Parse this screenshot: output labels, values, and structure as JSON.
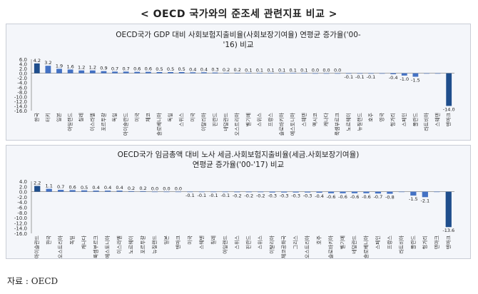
{
  "page_title": "< OECD 국가와의 준조세 관련지표 비교 >",
  "source": "자료 : OECD",
  "chart_data": [
    {
      "type": "bar",
      "title_lines": [
        "OECD국가 GDP 대비 사회보험지출비율(사회보장기여율) 연평균 증가율('00-",
        "'16) 비교"
      ],
      "ylim": [
        -16,
        6
      ],
      "yticks": [
        "6.0",
        "4.0",
        "2.0",
        "0.0",
        "-2.0",
        "-4.0",
        "-6.0",
        "-8.0",
        "-10.0",
        "-12.0",
        "-14.0",
        "-16.0"
      ],
      "highlight_color": "#1f4e8c",
      "bar_color": "#4472c4",
      "categories": [
        "한국",
        "터키",
        "일본",
        "아일랜드",
        "칠레",
        "이스라엘",
        "포르투갈",
        "독일",
        "아이슬란드",
        "미국",
        "체코",
        "슬로베니아",
        "독일",
        "스위스",
        "미국",
        "이탈리아",
        "핀란드",
        "네덜란드",
        "오스트리아",
        "벨기에",
        "스위스",
        "프랑스",
        "슬로바키아",
        "에스토니아",
        "스웨덴",
        "멕시코",
        "캐나다",
        "룩셈부르크",
        "노르웨이",
        "뉴질랜드",
        "호주",
        "영국",
        "헝가리",
        "스페인",
        "폴란드",
        "라트비아",
        "스웨덴",
        "덴마크"
      ],
      "values": [
        4.2,
        3.2,
        1.9,
        1.6,
        1.2,
        1.2,
        0.9,
        0.7,
        0.7,
        0.6,
        0.6,
        0.5,
        0.5,
        0.5,
        0.4,
        0.4,
        0.3,
        0.2,
        0.2,
        0.1,
        0.1,
        0.1,
        0.1,
        0.1,
        0.1,
        0.0,
        0.0,
        0.0,
        -0.1,
        -0.1,
        -0.1,
        0,
        -0.4,
        -1.0,
        -1.5,
        0,
        0,
        -14.0
      ],
      "labels": [
        "4.2",
        "3.2",
        "1.9",
        "1.6",
        "1.2",
        "1.2",
        "0.9",
        "0.7",
        "0.7",
        "0.6",
        "0.6",
        "0.5",
        "0.5",
        "0.5",
        "0.4",
        "0.4",
        "0.3",
        "0.2",
        "0.2",
        "0.1",
        "0.1",
        "0.1",
        "0.1",
        "0.1",
        "0.1",
        "0.0",
        "0.0",
        "0.0",
        "-0.1",
        "-0.1",
        "-0.1",
        "",
        "-0.4",
        "-1.0",
        "-1.5",
        "",
        "",
        "-14.0"
      ]
    },
    {
      "type": "bar",
      "title_lines": [
        "OECD국가 임금총액 대비 노사 세금.사회보험지출비율(세금.사회보장기여율)",
        "연평균 증가율('00-'17) 비교"
      ],
      "ylim": [
        -16,
        4
      ],
      "yticks": [
        "4.0",
        "2.0",
        "0.0",
        "-2.0",
        "-4.0",
        "-6.0",
        "-8.0",
        "-10.0",
        "-12.0",
        "-14.0",
        "-16.0"
      ],
      "highlight_color": "#1f4e8c",
      "bar_color": "#4472c4",
      "categories": [
        "아이슬란드",
        "한국",
        "오스트리아",
        "독일",
        "캐나다",
        "룩셈부르크",
        "에스토니아",
        "이스라엘",
        "노르웨이",
        "포르투갈",
        "뉴질랜드",
        "일본",
        "덴마크",
        "미국",
        "스웨덴",
        "칠레",
        "아일랜드",
        "스위스",
        "핀란드",
        "스위스",
        "이탈리아",
        "체코공화국",
        "그리스",
        "오스트리아",
        "호주",
        "슬로바키아",
        "벨기에",
        "네덜란드",
        "슬로베니아",
        "스페인",
        "프랑스",
        "라트비아",
        "폴란드",
        "헝가리",
        "덴마크",
        "덴마크"
      ],
      "values": [
        2.2,
        1.1,
        0.7,
        0.6,
        0.5,
        0.4,
        0.4,
        0.4,
        0.2,
        0.2,
        0.0,
        0.0,
        0.0,
        -0.1,
        -0.1,
        -0.1,
        -0.1,
        -0.2,
        -0.2,
        -0.2,
        -0.3,
        -0.3,
        -0.3,
        -0.3,
        -0.4,
        -0.6,
        -0.6,
        -0.6,
        -0.6,
        -0.7,
        -0.8,
        0,
        -1.5,
        -2.1,
        0,
        -13.6
      ],
      "labels": [
        "2.2",
        "1.1",
        "0.7",
        "0.6",
        "0.5",
        "0.4",
        "0.4",
        "0.4",
        "0.2",
        "0.2",
        "0.0",
        "0.0",
        "0.0",
        "-0.1",
        "-0.1",
        "-0.1",
        "-0.1",
        "-0.2",
        "-0.2",
        "-0.2",
        "-0.3",
        "-0.3",
        "-0.3",
        "-0.3",
        "-0.4",
        "-0.6",
        "-0.6",
        "-0.6",
        "-0.6",
        "-0.7",
        "-0.8",
        "",
        "-1.5",
        "-2.1",
        "",
        "-13.6"
      ]
    }
  ]
}
